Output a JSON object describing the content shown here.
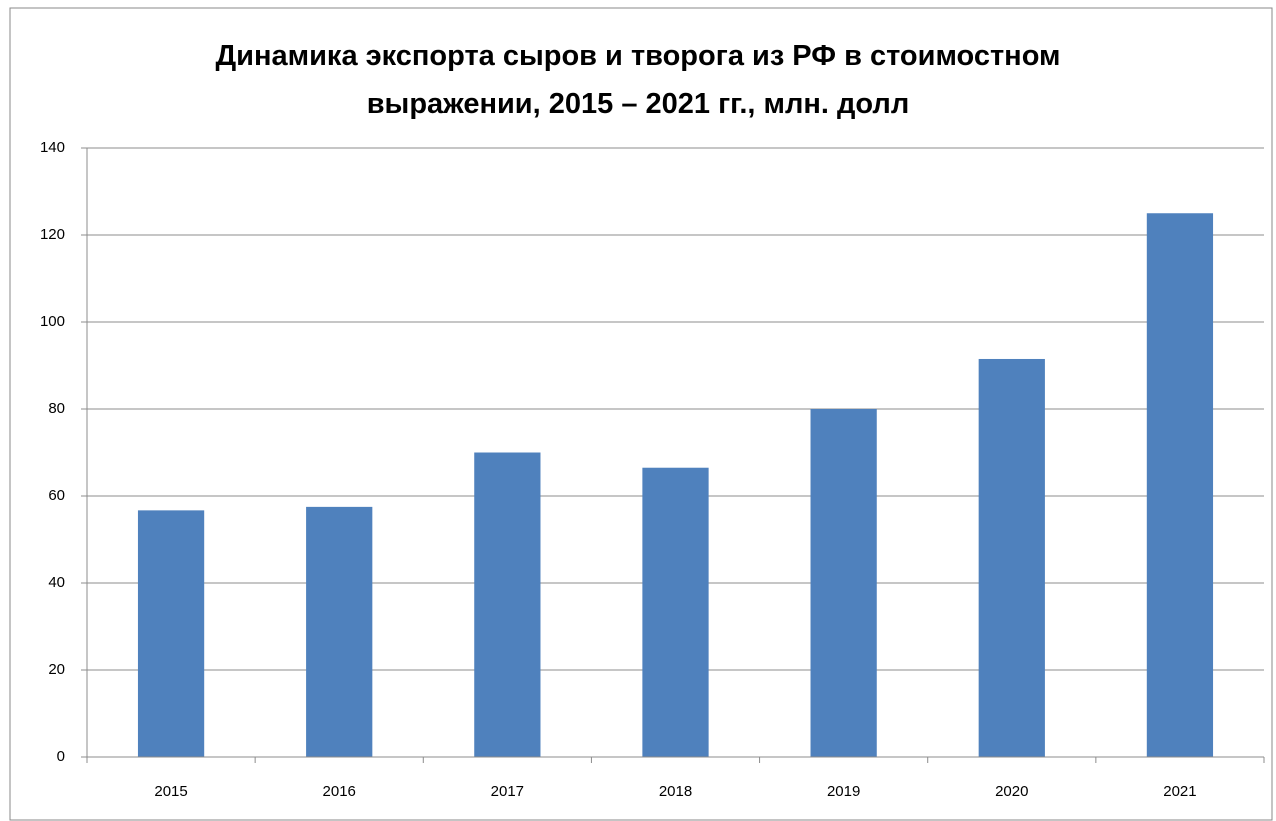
{
  "chart_data": {
    "type": "bar",
    "title": "Динамика экспорта сыров и творога из РФ в стоимостном выражении, 2015 – 2021 гг., млн. долл",
    "categories": [
      "2015",
      "2016",
      "2017",
      "2018",
      "2019",
      "2020",
      "2021"
    ],
    "values": [
      56.7,
      57.5,
      70,
      66.5,
      80,
      91.5,
      125
    ],
    "color": "#4f81bd",
    "ylim": [
      0,
      140
    ],
    "yticks": [
      0,
      20,
      40,
      60,
      80,
      100,
      120,
      140
    ],
    "grid": true
  }
}
